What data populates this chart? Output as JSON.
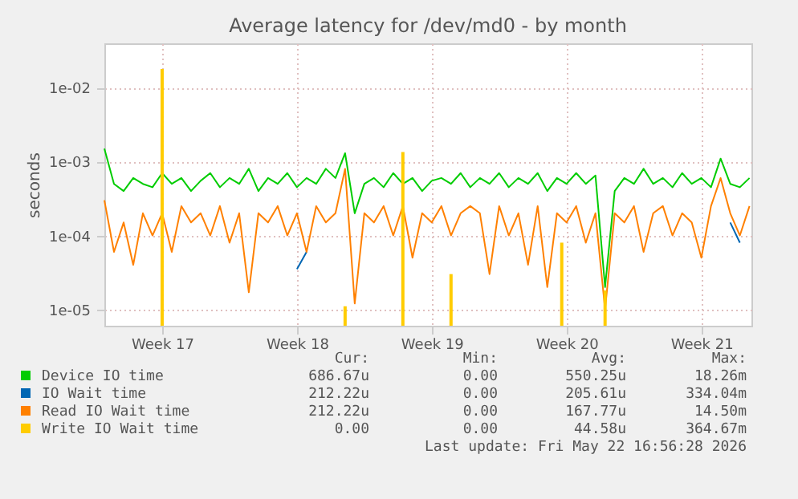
{
  "chart_data": {
    "type": "line",
    "title": "Average latency for /dev/md0 - by month",
    "ylabel": "seconds",
    "x": [
      "2026-04-17T00:00",
      "2026-04-17T12:00",
      "2026-04-18T00:00",
      "2026-04-18T12:00",
      "2026-04-19T00:00",
      "2026-04-19T12:00",
      "2026-04-20T00:00",
      "2026-04-20T12:00",
      "2026-04-21T00:00",
      "2026-04-21T12:00",
      "2026-04-22T00:00",
      "2026-04-22T12:00",
      "2026-04-23T00:00",
      "2026-04-23T12:00",
      "2026-04-24T00:00",
      "2026-04-24T12:00",
      "2026-04-25T00:00",
      "2026-04-25T12:00",
      "2026-04-26T00:00",
      "2026-04-26T12:00",
      "2026-04-27T00:00",
      "2026-04-27T12:00",
      "2026-04-28T00:00",
      "2026-04-28T12:00",
      "2026-04-29T00:00",
      "2026-04-29T12:00",
      "2026-04-30T00:00",
      "2026-04-30T12:00",
      "2026-05-01T00:00",
      "2026-05-01T12:00",
      "2026-05-02T00:00",
      "2026-05-02T12:00",
      "2026-05-03T00:00",
      "2026-05-03T12:00",
      "2026-05-04T00:00",
      "2026-05-04T12:00",
      "2026-05-05T00:00",
      "2026-05-05T12:00",
      "2026-05-06T00:00",
      "2026-05-06T12:00",
      "2026-05-07T00:00",
      "2026-05-07T12:00",
      "2026-05-08T00:00",
      "2026-05-08T12:00",
      "2026-05-09T00:00",
      "2026-05-09T12:00",
      "2026-05-10T00:00",
      "2026-05-10T12:00",
      "2026-05-11T00:00",
      "2026-05-11T12:00",
      "2026-05-12T00:00",
      "2026-05-12T12:00",
      "2026-05-13T00:00",
      "2026-05-13T12:00",
      "2026-05-14T00:00",
      "2026-05-14T12:00",
      "2026-05-15T00:00",
      "2026-05-15T12:00",
      "2026-05-16T00:00",
      "2026-05-16T12:00",
      "2026-05-17T00:00",
      "2026-05-17T12:00",
      "2026-05-18T00:00",
      "2026-05-18T12:00",
      "2026-05-19T00:00",
      "2026-05-19T12:00",
      "2026-05-20T00:00",
      "2026-05-20T12:00"
    ],
    "series": [
      {
        "name": "Device IO time",
        "color": "#00cc00",
        "values": [
          0.0015,
          0.0005,
          0.0004,
          0.0006,
          0.0005,
          0.00045,
          0.0007,
          0.0005,
          0.0006,
          0.0004,
          0.00055,
          0.0007,
          0.00045,
          0.0006,
          0.0005,
          0.0008,
          0.0004,
          0.0006,
          0.0005,
          0.0007,
          0.00045,
          0.0006,
          0.0005,
          0.0008,
          0.0006,
          0.0013,
          0.0002,
          0.0005,
          0.0006,
          0.00045,
          0.0007,
          0.0005,
          0.0006,
          0.0004,
          0.00055,
          0.0006,
          0.0005,
          0.0007,
          0.00045,
          0.0006,
          0.0005,
          0.0007,
          0.00045,
          0.0006,
          0.0005,
          0.0007,
          0.0004,
          0.0006,
          0.0005,
          0.0007,
          0.0005,
          0.00065,
          2e-05,
          0.0004,
          0.0006,
          0.0005,
          0.0008,
          0.0005,
          0.0006,
          0.00045,
          0.0007,
          0.0005,
          0.0006,
          0.00045,
          0.0011,
          0.0005,
          0.00045,
          0.0006
        ]
      },
      {
        "name": "IO Wait time",
        "color": "#0066b3",
        "values": [
          null,
          null,
          null,
          null,
          null,
          null,
          null,
          null,
          null,
          null,
          null,
          null,
          null,
          null,
          null,
          null,
          null,
          null,
          null,
          null,
          3.5e-05,
          6e-05,
          null,
          null,
          null,
          null,
          null,
          null,
          null,
          null,
          null,
          null,
          null,
          null,
          null,
          null,
          null,
          null,
          null,
          null,
          null,
          null,
          null,
          null,
          null,
          null,
          null,
          null,
          null,
          null,
          null,
          null,
          null,
          null,
          null,
          null,
          null,
          null,
          null,
          null,
          null,
          null,
          null,
          null,
          null,
          0.00015,
          8e-05,
          null
        ]
      },
      {
        "name": "Read IO Wait time",
        "color": "#ff8000",
        "values": [
          0.0003,
          6e-05,
          0.00015,
          4e-05,
          0.0002,
          0.0001,
          0.0002,
          6e-05,
          0.00025,
          0.00015,
          0.0002,
          0.0001,
          0.00025,
          8e-05,
          0.0002,
          1.7e-05,
          0.0002,
          0.00015,
          0.00025,
          0.0001,
          0.0002,
          6e-05,
          0.00025,
          0.00015,
          0.0002,
          0.0008,
          1.2e-05,
          0.0002,
          0.00015,
          0.00025,
          0.0001,
          0.00025,
          5e-05,
          0.0002,
          0.00015,
          0.00025,
          0.0001,
          0.0002,
          0.00025,
          0.0002,
          3e-05,
          0.00025,
          0.0001,
          0.0002,
          4e-05,
          0.00025,
          2e-05,
          0.0002,
          0.00015,
          0.00025,
          8e-05,
          0.0002,
          1e-05,
          0.0002,
          0.00015,
          0.00025,
          6e-05,
          0.0002,
          0.00025,
          0.0001,
          0.0002,
          0.00015,
          5e-05,
          0.00025,
          0.0006,
          0.0002,
          0.0001,
          0.00025
        ]
      },
      {
        "name": "Write IO Wait time",
        "color": "#ffcc00",
        "type": "bar",
        "x": [
          "2026-04-20T00:00",
          "2026-04-29T12:00",
          "2026-05-02T12:00",
          "2026-05-05T00:00",
          "2026-05-10T18:00",
          "2026-05-13T00:00"
        ],
        "values": [
          0.018,
          1.1e-05,
          0.00135,
          3e-05,
          8e-05,
          1.8e-05
        ]
      }
    ],
    "log": "y",
    "xlim": [
      "2026-04-17T00:00",
      "2026-05-20T14:24"
    ],
    "ylim": [
      6e-06,
      0.04
    ],
    "xticks": [
      {
        "value": "2026-04-20",
        "label": "Week 17"
      },
      {
        "value": "2026-04-27",
        "label": "Week 18"
      },
      {
        "value": "2026-05-04",
        "label": "Week 19"
      },
      {
        "value": "2026-05-11",
        "label": "Week 20"
      },
      {
        "value": "2026-05-18",
        "label": "Week 21"
      }
    ],
    "yticks": [
      {
        "value": 1e-05,
        "label": "1e-05"
      },
      {
        "value": 0.0001,
        "label": "1e-04"
      },
      {
        "value": 0.001,
        "label": "1e-03"
      },
      {
        "value": 0.01,
        "label": "1e-02"
      }
    ],
    "grid": true,
    "legend": "bottom",
    "annotations": [
      "Cur:",
      "Min:",
      "Avg:",
      "Max:",
      "686.67u",
      "0.00",
      "550.25u",
      "18.26m",
      "212.22u",
      "0.00",
      "205.61u",
      "334.04m",
      "212.22u",
      "0.00",
      "167.77u",
      "14.50m",
      "0.00",
      "0.00",
      "44.58u",
      "364.67m",
      "Last update: Fri May 22 16:56:28 2026"
    ]
  }
}
